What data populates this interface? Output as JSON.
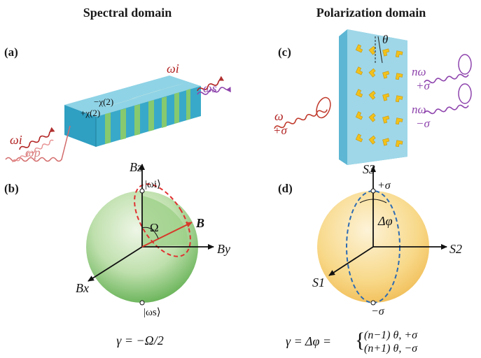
{
  "headers": {
    "left": "Spectral domain",
    "right": "Polarization domain"
  },
  "panels": {
    "a": "(a)",
    "b": "(b)",
    "c": "(c)",
    "d": "(d)"
  },
  "panel_a": {
    "omega_i_top": "ωi",
    "omega_s": "ωs",
    "chi_plus": "+χ(2)",
    "chi_minus": "−χ(2)",
    "omega_i_left": "ωi",
    "omega_p": "ωp"
  },
  "panel_b": {
    "axis_z": "Bz",
    "axis_y": "By",
    "axis_x": "Bx",
    "state_top": "|ωi⟩",
    "state_bottom": "|ωs⟩",
    "omega_cap": "Ω",
    "vector_b": "B",
    "equation": "γ = −Ω/2"
  },
  "panel_c": {
    "theta": "θ",
    "in_omega": "ω",
    "in_sigma": "+σ",
    "out1_freq": "nω",
    "out1_sigma": "+σ",
    "out2_freq": "nω",
    "out2_sigma": "−σ"
  },
  "panel_d": {
    "axis_s3": "S3",
    "axis_s2": "S2",
    "axis_s1": "S1",
    "pole_top": "+σ",
    "pole_bottom": "−σ",
    "delta_phi": "Δφ",
    "equation_lhs": "γ = Δφ =",
    "equation_line1": "(n−1) θ,  +σ",
    "equation_line2": "(n+1) θ,  −σ"
  },
  "colors": {
    "wave_red": "#c0392b",
    "wave_purple": "#8e44ad",
    "crystal_blue": "#3aa6c8",
    "crystal_green": "#7cc36a",
    "sphere_green": "#8bc87a",
    "sphere_yellow": "#f6cf73",
    "metasurface": "#8fd0e3",
    "meta_atom": "#f2c21b",
    "dashed_red": "#e03030",
    "dashed_blue": "#2d6bb3"
  }
}
